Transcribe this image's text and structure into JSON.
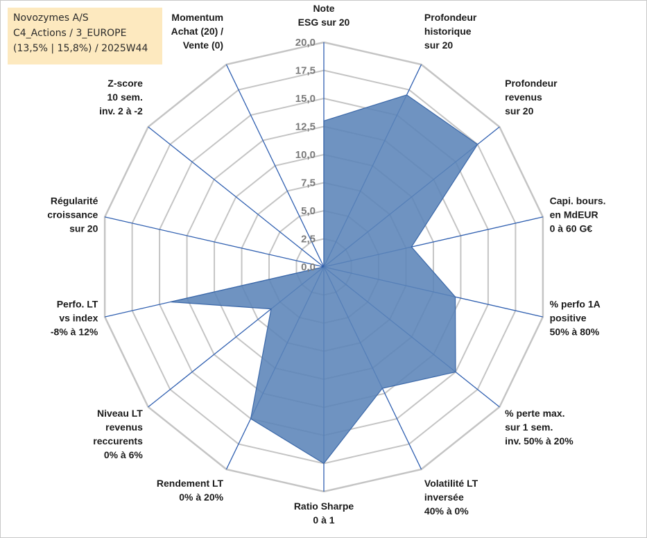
{
  "title_box": {
    "line1": "Novozymes A/S",
    "line2": "C4_Actions / 3_EUROPE",
    "line3": "(13,5% | 15,8%) / 2025W44"
  },
  "colors": {
    "fill": "#5b84b8",
    "stroke": "#3a67a8",
    "spoke": "#2f5fb0",
    "grid": "#c4c4c4",
    "title_bg": "#fde9bf"
  },
  "chart_data": {
    "type": "radar",
    "rmax": 20,
    "grid_step": 2.5,
    "axes": [
      {
        "label": [
          "Note",
          "ESG sur 20"
        ],
        "value": 13.0
      },
      {
        "label": [
          "Profondeur",
          "historique",
          "sur 20"
        ],
        "value": 17.0
      },
      {
        "label": [
          "Profondeur",
          "revenus",
          "sur 20"
        ],
        "value": 17.5
      },
      {
        "label": [
          "Capi. bours.",
          "en MdEUR",
          "0 à 60 G€"
        ],
        "value": 8.0
      },
      {
        "label": [
          "% perfo 1A",
          "positive",
          "50% à 80%"
        ],
        "value": 12.0
      },
      {
        "label": [
          "% perte max.",
          "sur 1 sem.",
          "inv. 50% à 20%"
        ],
        "value": 15.0
      },
      {
        "label": [
          "Volatilité LT",
          "inversée",
          "40% à 0%"
        ],
        "value": 12.0
      },
      {
        "label": [
          "Ratio Sharpe",
          "0 à 1"
        ],
        "value": 17.5
      },
      {
        "label": [
          "Rendement LT",
          "0% à 20%"
        ],
        "value": 15.0
      },
      {
        "label": [
          "Niveau LT",
          "revenus",
          "reccurents",
          "0% à 6%"
        ],
        "value": 6.0
      },
      {
        "label": [
          "Perfo. LT",
          "vs index",
          "-8% à 12%"
        ],
        "value": 14.0
      },
      {
        "label": [
          "Régularité",
          "croissance",
          "sur 20"
        ],
        "value": 0.0
      },
      {
        "label": [
          "Z-score",
          "10 sem.",
          "inv. 2 à -2"
        ],
        "value": 0.0
      },
      {
        "label": [
          "Momentum",
          "Achat (20) /",
          "Vente (0)"
        ],
        "value": 0.0
      }
    ],
    "tick_labels": [
      "0,0",
      "2,5",
      "5,0",
      "7,5",
      "10,0",
      "12,5",
      "15,0",
      "17,5",
      "20,0"
    ]
  }
}
